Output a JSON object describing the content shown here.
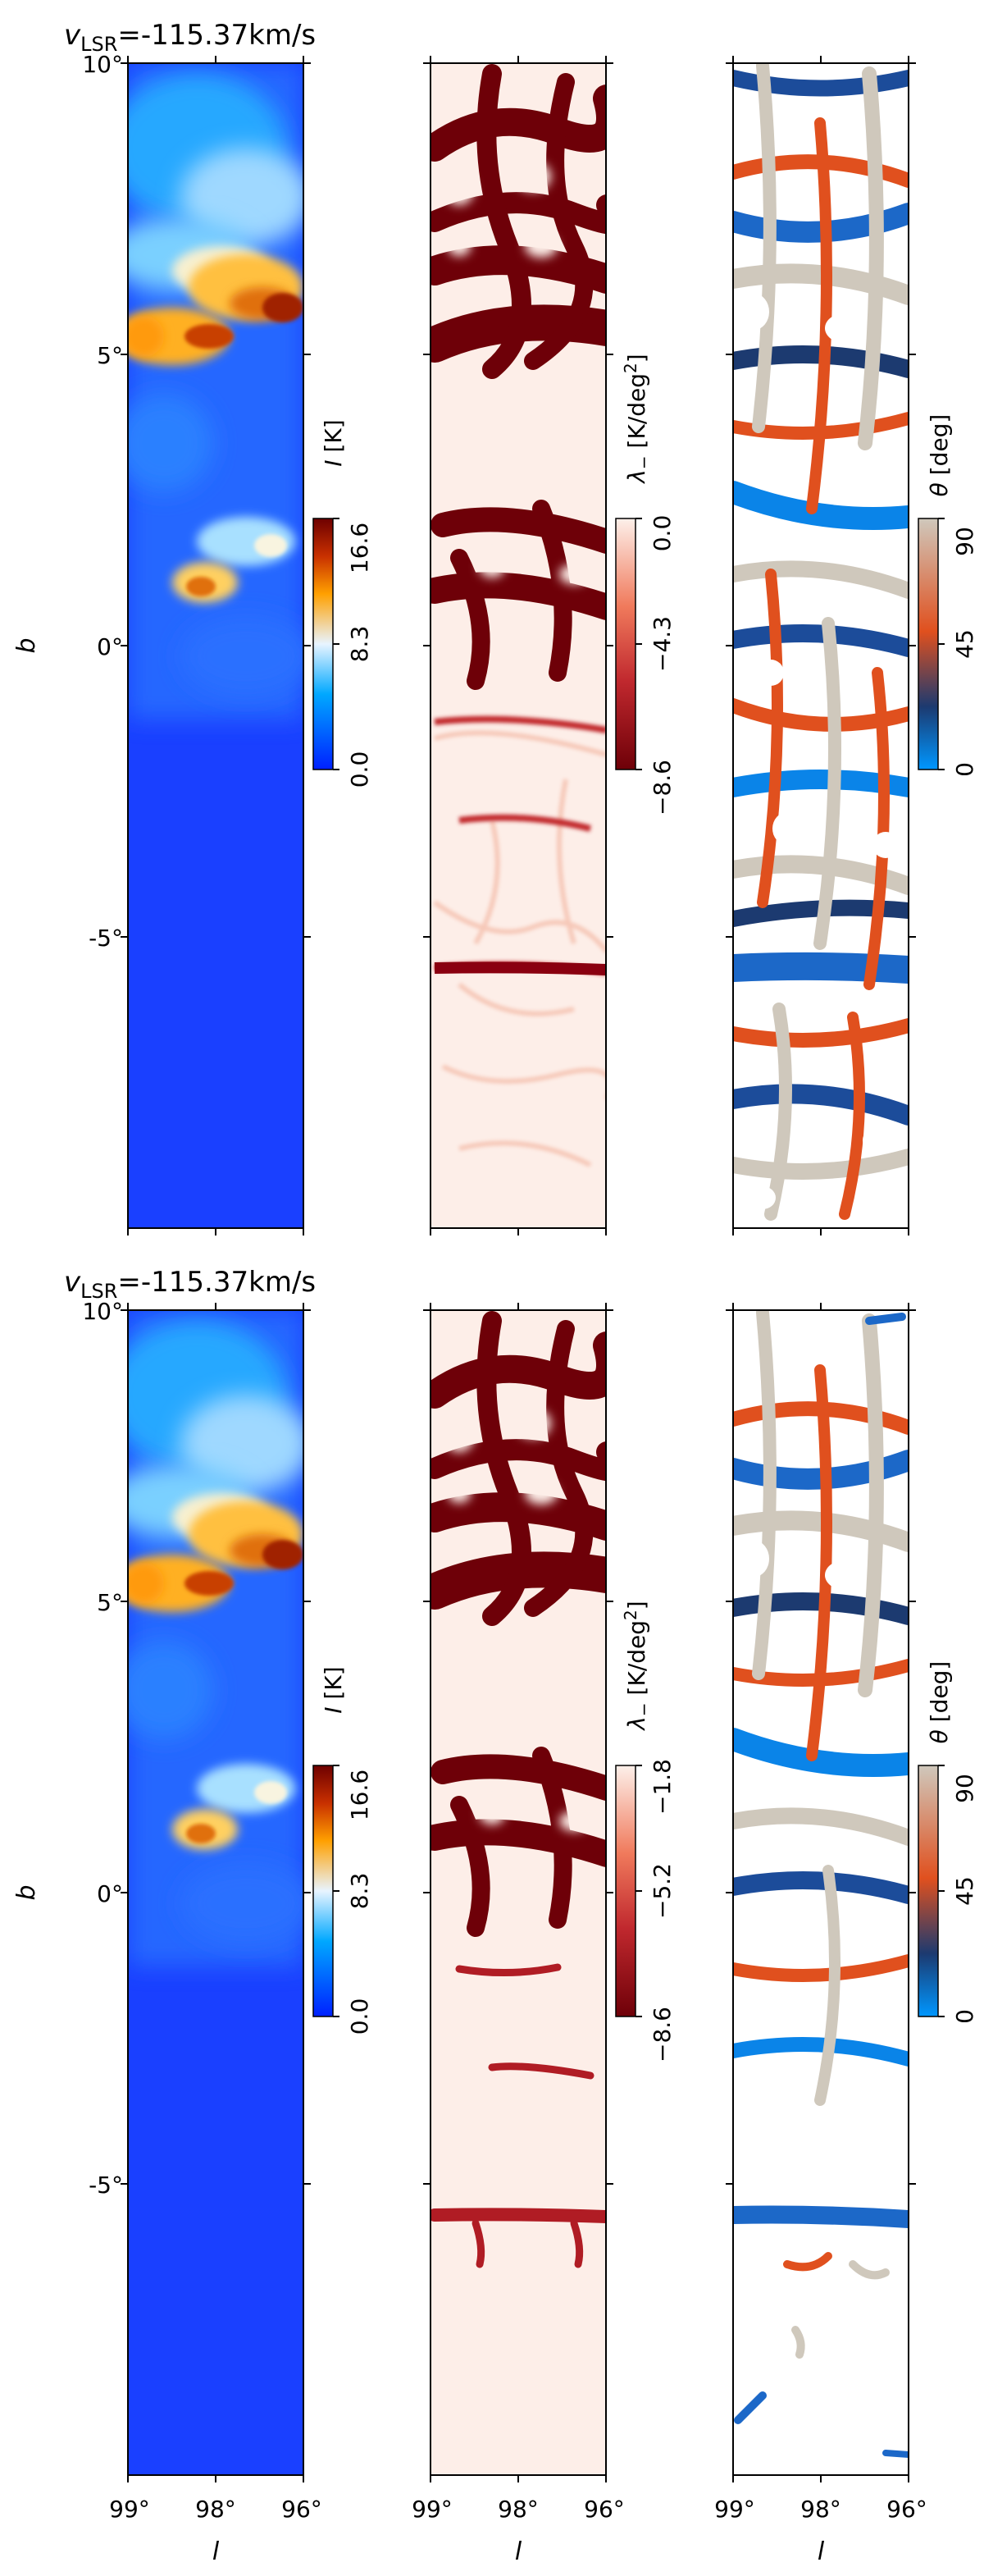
{
  "chart_data": [
    {
      "type": "heatmap",
      "row": 0,
      "title": "v_LSR=-115.37km/s",
      "panels": [
        {
          "quantity": "intensity",
          "colorbar": {
            "label": "I [K]",
            "ticks": [
              "0.0",
              "8.3",
              "16.6"
            ],
            "range": [
              0.0,
              16.6
            ],
            "colors": [
              "#0020ff",
              "#00a8ff",
              "#e8f4ff",
              "#ffa000",
              "#c83000",
              "#6e0000"
            ]
          }
        },
        {
          "quantity": "lambda_minus",
          "colorbar": {
            "label": "λ₋ [K/deg²]",
            "ticks": [
              "-8.6",
              "-4.3",
              "0.0"
            ],
            "range": [
              -8.6,
              0.0
            ],
            "colors": [
              "#6e0008",
              "#c0282e",
              "#f07a5c",
              "#fdf0ea"
            ]
          }
        },
        {
          "quantity": "theta",
          "colorbar": {
            "label": "θ [deg]",
            "ticks": [
              "0",
              "45",
              "90"
            ],
            "range": [
              0,
              90
            ],
            "colors": [
              "#0097ff",
              "#1c3a70",
              "#e0501e",
              "#cfc8bc"
            ]
          }
        }
      ],
      "xaxis": {
        "label": "l",
        "ticks": [
          "99°",
          "98°",
          "96°"
        ]
      },
      "yaxis": {
        "label": "b",
        "ticks": [
          "10°",
          "5°",
          "0°",
          "-5°"
        ],
        "range": [
          -10,
          10
        ]
      }
    },
    {
      "type": "heatmap",
      "row": 1,
      "title": "v_LSR=-115.37km/s",
      "panels": [
        {
          "quantity": "intensity",
          "colorbar": {
            "label": "I [K]",
            "ticks": [
              "0.0",
              "8.3",
              "16.6"
            ],
            "range": [
              0.0,
              16.6
            ],
            "colors": [
              "#0020ff",
              "#00a8ff",
              "#e8f4ff",
              "#ffa000",
              "#c83000",
              "#6e0000"
            ]
          }
        },
        {
          "quantity": "lambda_minus",
          "colorbar": {
            "label": "λ₋ [K/deg²]",
            "ticks": [
              "-8.6",
              "-5.2",
              "-1.8"
            ],
            "range": [
              -8.6,
              -1.8
            ],
            "colors": [
              "#6e0008",
              "#c0282e",
              "#f07a5c",
              "#fdf0ea"
            ]
          }
        },
        {
          "quantity": "theta",
          "colorbar": {
            "label": "θ [deg]",
            "ticks": [
              "0",
              "45",
              "90"
            ],
            "range": [
              0,
              90
            ],
            "colors": [
              "#0097ff",
              "#1c3a70",
              "#e0501e",
              "#cfc8bc"
            ]
          }
        }
      ],
      "xaxis": {
        "label": "l",
        "ticks": [
          "99°",
          "98°",
          "96°"
        ]
      },
      "yaxis": {
        "label": "b",
        "ticks": [
          "10°",
          "5°",
          "0°",
          "-5°"
        ],
        "range": [
          -10,
          10
        ]
      }
    }
  ],
  "rows": [
    {
      "title_v": "v",
      "title_sub": "LSR",
      "title_rest": "=-115.37km/s",
      "ylabel": "b",
      "yticks": [
        "10°",
        "5°",
        "0°",
        "-5°"
      ],
      "cb1": {
        "label_var": "I",
        "label_unit": " [K]",
        "ticks": [
          "16.6",
          "8.3",
          "0.0"
        ]
      },
      "cb2": {
        "label_var": "λ",
        "label_sub": "−",
        "label_unit": " [K/deg",
        "label_sup": "2",
        "label_end": "]",
        "ticks": [
          "0.0",
          "−4.3",
          "−8.6"
        ]
      },
      "cb3": {
        "label_var": "θ",
        "label_unit": " [deg]",
        "ticks": [
          "90",
          "45",
          "0"
        ]
      }
    },
    {
      "title_v": "v",
      "title_sub": "LSR",
      "title_rest": "=-115.37km/s",
      "ylabel": "b",
      "yticks": [
        "10°",
        "5°",
        "0°",
        "-5°"
      ],
      "cb1": {
        "label_var": "I",
        "label_unit": " [K]",
        "ticks": [
          "16.6",
          "8.3",
          "0.0"
        ]
      },
      "cb2": {
        "label_var": "λ",
        "label_sub": "−",
        "label_unit": " [K/deg",
        "label_sup": "2",
        "label_end": "]",
        "ticks": [
          "−1.8",
          "−5.2",
          "−8.6"
        ]
      },
      "cb3": {
        "label_var": "θ",
        "label_unit": " [deg]",
        "ticks": [
          "90",
          "45",
          "0"
        ]
      }
    }
  ],
  "xaxis": {
    "label": "l",
    "ticks": [
      "99°",
      "98°",
      "96°"
    ]
  },
  "colors": {
    "intensity": [
      "#0020ff",
      "#00a8ff",
      "#e8f4ff",
      "#ffa000",
      "#c83000",
      "#6e0000"
    ],
    "lambda": [
      "#6e0008",
      "#c0282e",
      "#f07a5c",
      "#fdf0ea"
    ],
    "theta": [
      "#0097ff",
      "#1c3a70",
      "#e0501e",
      "#cfc8bc"
    ]
  }
}
